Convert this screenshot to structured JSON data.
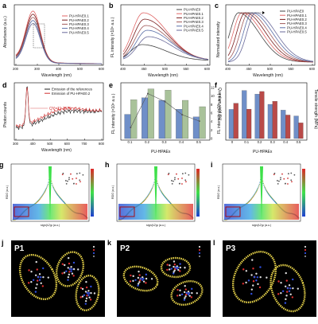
{
  "panels": {
    "a": {
      "letter": "a",
      "xlabel": "Wavelength (nm)",
      "ylabel": "Absorbance (a.u.)",
      "xticks": [
        "200",
        "300",
        "400",
        "500",
        "600"
      ],
      "legend": [
        "PU-HPAE0.1",
        "PU-HPAE0.2",
        "PU-HPAE0.3",
        "PU-HPAE0.4",
        "PU-HPAE0.5"
      ]
    },
    "b": {
      "letter": "b",
      "xlabel": "Wavelength (nm)",
      "ylabel": "FL intensity (×10⁶ a.u.)",
      "xticks": [
        "400",
        "450",
        "500",
        "550",
        "600"
      ],
      "yticks": [
        "0",
        "1",
        "2",
        "3",
        "4",
        "5"
      ],
      "legend": [
        "PU-HPAE0",
        "PU-HPAE0.1",
        "PU-HPAE0.2",
        "PU-HPAE0.3",
        "PU-HPAE0.4",
        "PU-HPAE0.5"
      ]
    },
    "c": {
      "letter": "c",
      "xlabel": "Wavelength (nm)",
      "ylabel": "Normalized intensity",
      "xticks": [
        "400",
        "450",
        "500",
        "550",
        "600"
      ],
      "legend": [
        "PU-HPAE0",
        "PU-HPAE0.1",
        "PU-HPAE0.2",
        "PU-HPAE0.3",
        "PU-HPAE0.4",
        "PU-HPAE0.5"
      ]
    },
    "d": {
      "letter": "d",
      "xlabel": "Wavelength (nm)",
      "ylabel": "Photon counts",
      "xticks": [
        "300",
        "400",
        "500",
        "600",
        "700",
        "800"
      ],
      "legend": [
        "Emission of the references",
        "Emission of PU-HPAE0.2"
      ],
      "annotation": "QY=11.16 %"
    },
    "e": {
      "letter": "e",
      "xlabel": "PU-HPAEx",
      "ylabel": "FL intensity (×10⁶ a.u.)",
      "ylabel2": "Quantum yield (%)",
      "categories": [
        "0.1",
        "0.2",
        "0.3",
        "0.4",
        "0.5"
      ],
      "yticks2": [
        "0",
        "2",
        "4",
        "6",
        "8",
        "10",
        "12"
      ]
    },
    "f": {
      "letter": "f",
      "xlabel": "PU-HPAEx",
      "ylabel": "FL intensity (×10⁶ a.u.)",
      "ylabel2": "Tensile strength (MPa)",
      "categories": [
        "0",
        "0.1",
        "0.2",
        "0.3",
        "0.4",
        "0.5"
      ]
    },
    "g": {
      "letter": "g",
      "tag": "P1",
      "xlabel": "sign(λ2)ρ (a.u.)",
      "ylabel": "RDG (a.u.)"
    },
    "h": {
      "letter": "h",
      "tag": "P2",
      "xlabel": "sign(λ2)ρ (a.u.)",
      "ylabel": "RDG (a.u.)"
    },
    "i": {
      "letter": "i",
      "tag": "P3",
      "xlabel": "sign(λ2)ρ (a.u.)",
      "ylabel": "RDG (a.u.)"
    },
    "j": {
      "letter": "j",
      "tag": "P1"
    },
    "k": {
      "letter": "k",
      "tag": "P2"
    },
    "l": {
      "letter": "l",
      "tag": "P3"
    }
  },
  "colors": {
    "c0": "#444444",
    "c1": "#e06666",
    "c2": "#7a1f1f",
    "c3": "#a05a5a",
    "c4": "#5b6fa8",
    "c5": "#6a6a9a",
    "barBlue": "#6f8fc8",
    "barGreen": "#a9c29a",
    "barRed": "#b94a48"
  },
  "chart_data": [
    {
      "panel": "e",
      "type": "bar",
      "categories": [
        "0.1",
        "0.2",
        "0.3",
        "0.4",
        "0.5"
      ],
      "series": [
        {
          "values": [
            3.8,
            6.4,
            6.0,
            4.6,
            3.4
          ]
        },
        {
          "values": [
            6.1,
            7.8,
            7.6,
            6.0,
            5.0
          ]
        },
        {
          "values": [
            2.6,
            10.6,
            8.7,
            5.6,
            4.1
          ]
        }
      ]
    },
    {
      "panel": "f",
      "type": "bar",
      "categories": [
        "0",
        "0.1",
        "0.2",
        "0.3",
        "0.4",
        "0.5"
      ],
      "series": [
        {
          "values": [
            4.0,
            6.6,
            6.1,
            4.7,
            3.9,
            3.1
          ]
        },
        {
          "values": [
            18,
            15,
            24,
            19,
            12,
            8
          ]
        }
      ]
    }
  ]
}
